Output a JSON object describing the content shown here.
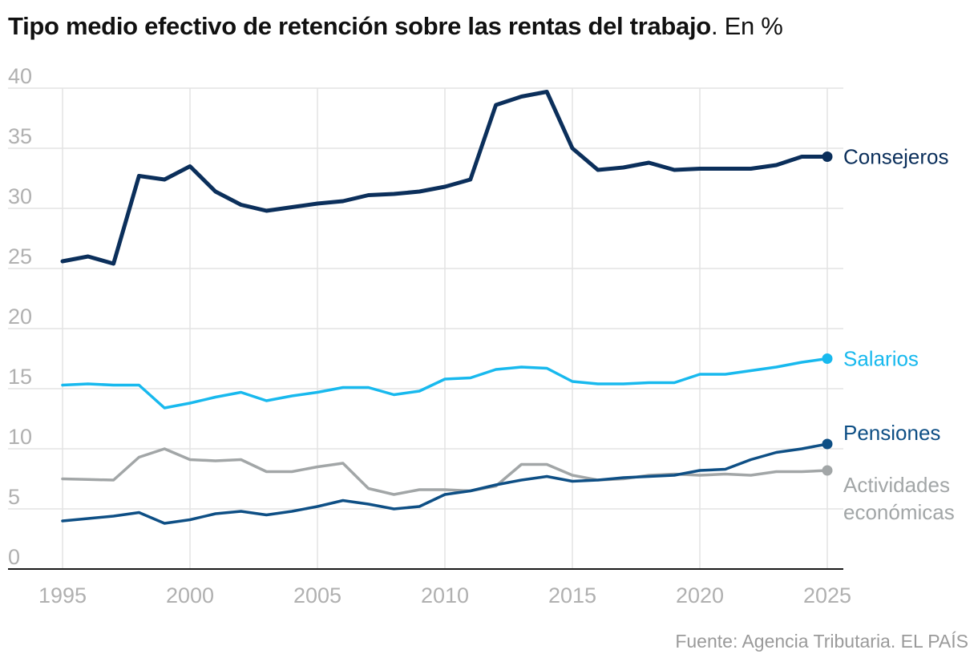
{
  "title": "Tipo medio efectivo de retención sobre las rentas del trabajo",
  "title_suffix": ". En %",
  "source": "Fuente: Agencia Tributaria. EL PAÍS",
  "colors": {
    "consejeros": "#0b2f5b",
    "salarios": "#18b9ee",
    "pensiones": "#0e4f85",
    "actividades": "#a2a6a7",
    "grid": "#e3e3e3",
    "axis": "#1a1a1a",
    "tick_label": "#b0b0b0"
  },
  "chart_data": {
    "type": "line",
    "title": "Tipo medio efectivo de retención sobre las rentas del trabajo. En %",
    "xlabel": "",
    "ylabel": "",
    "xlim": [
      1995,
      2025
    ],
    "ylim": [
      0,
      40
    ],
    "grid": true,
    "legend": "inline labels at line ends (right)",
    "x_ticks": [
      "1995",
      "2000",
      "2005",
      "2010",
      "2015",
      "2020",
      "2025"
    ],
    "y_ticks": [
      "0",
      "5",
      "10",
      "15",
      "20",
      "25",
      "30",
      "35",
      "40"
    ],
    "x": [
      1995,
      1996,
      1997,
      1998,
      1999,
      2000,
      2001,
      2002,
      2003,
      2004,
      2005,
      2006,
      2007,
      2008,
      2009,
      2010,
      2011,
      2012,
      2013,
      2014,
      2015,
      2016,
      2017,
      2018,
      2019,
      2020,
      2021,
      2022,
      2023,
      2024,
      2025
    ],
    "series": [
      {
        "name": "Consejeros",
        "color": "#0b2f5b",
        "values": [
          25.6,
          26.0,
          25.4,
          32.7,
          32.4,
          33.5,
          31.4,
          30.3,
          29.8,
          30.1,
          30.4,
          30.6,
          31.1,
          31.2,
          31.4,
          31.8,
          32.4,
          38.6,
          39.3,
          39.7,
          35.0,
          33.2,
          33.4,
          33.8,
          33.2,
          33.3,
          33.3,
          33.3,
          33.6,
          34.3,
          34.3
        ]
      },
      {
        "name": "Salarios",
        "color": "#18b9ee",
        "values": [
          15.3,
          15.4,
          15.3,
          15.3,
          13.4,
          13.8,
          14.3,
          14.7,
          14.0,
          14.4,
          14.7,
          15.1,
          15.1,
          14.5,
          14.8,
          15.8,
          15.9,
          16.6,
          16.8,
          16.7,
          15.6,
          15.4,
          15.4,
          15.5,
          15.5,
          16.2,
          16.2,
          16.5,
          16.8,
          17.2,
          17.5
        ]
      },
      {
        "name": "Pensiones",
        "color": "#0e4f85",
        "values": [
          4.0,
          4.2,
          4.4,
          4.7,
          3.8,
          4.1,
          4.6,
          4.8,
          4.5,
          4.8,
          5.2,
          5.7,
          5.4,
          5.0,
          5.2,
          6.2,
          6.5,
          7.0,
          7.4,
          7.7,
          7.3,
          7.4,
          7.6,
          7.7,
          7.8,
          8.2,
          8.3,
          9.1,
          9.7,
          10.0,
          10.4
        ]
      },
      {
        "name": "Actividades económicas",
        "label_lines": [
          "Actividades",
          "económicas"
        ],
        "color": "#a2a6a7",
        "values": [
          7.5,
          7.45,
          7.4,
          9.3,
          10.0,
          9.1,
          9.0,
          9.1,
          8.1,
          8.1,
          8.5,
          8.8,
          6.7,
          6.2,
          6.6,
          6.6,
          6.5,
          6.9,
          8.7,
          8.7,
          7.8,
          7.4,
          7.5,
          7.8,
          7.9,
          7.8,
          7.9,
          7.8,
          8.1,
          8.1,
          8.2
        ]
      }
    ]
  }
}
